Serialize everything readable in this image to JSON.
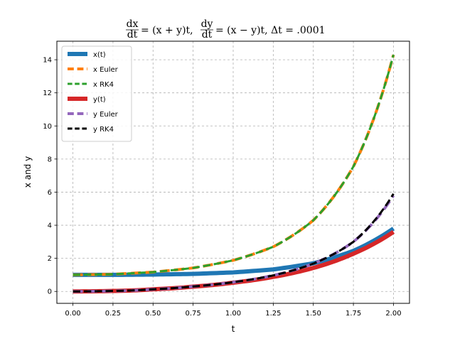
{
  "chart_data": {
    "type": "line",
    "title": "dx/dt = (x+y)t, dy/dt = (x−y)t, Δt = .0001",
    "title_parts": {
      "dx_num": "dx",
      "dx_den": "dt",
      "eq1": "= (x + y)t,",
      "dy_num": "dy",
      "dy_den": "dt",
      "eq2": "= (x − y)t, Δt = .0001"
    },
    "xlabel": "t",
    "ylabel": "x and y",
    "xlim": [
      -0.1,
      2.1
    ],
    "ylim": [
      -0.72,
      15.12
    ],
    "xticks": [
      0.0,
      0.25,
      0.5,
      0.75,
      1.0,
      1.25,
      1.5,
      1.75,
      2.0
    ],
    "xtick_labels": [
      "0.00",
      "0.25",
      "0.50",
      "0.75",
      "1.00",
      "1.25",
      "1.50",
      "1.75",
      "2.00"
    ],
    "yticks": [
      0,
      2,
      4,
      6,
      8,
      10,
      12,
      14
    ],
    "ytick_labels": [
      "0",
      "2",
      "4",
      "6",
      "8",
      "10",
      "12",
      "14"
    ],
    "grid": true,
    "legend_position": "top-left",
    "x": [
      0.0,
      0.25,
      0.5,
      0.75,
      1.0,
      1.25,
      1.5,
      1.75,
      2.0
    ],
    "series": [
      {
        "name": "x(t)",
        "color": "#1f77b4",
        "style": "solid",
        "width": 6,
        "values": [
          1.0,
          1.0,
          1.02,
          1.06,
          1.15,
          1.33,
          1.7,
          2.45,
          3.8
        ]
      },
      {
        "name": "x Euler",
        "color": "#ff7f0e",
        "style": "dashed",
        "width": 4,
        "values": [
          1.0,
          1.04,
          1.17,
          1.42,
          1.88,
          2.7,
          4.3,
          7.55,
          14.3
        ]
      },
      {
        "name": "x RK4",
        "color": "#2ca02c",
        "style": "dashed",
        "width": 3,
        "values": [
          1.0,
          1.04,
          1.17,
          1.42,
          1.88,
          2.7,
          4.3,
          7.55,
          14.3
        ]
      },
      {
        "name": "y(t)",
        "color": "#d62728",
        "style": "solid",
        "width": 6,
        "values": [
          0.0,
          0.03,
          0.13,
          0.29,
          0.53,
          0.88,
          1.42,
          2.28,
          3.6
        ]
      },
      {
        "name": "y Euler",
        "color": "#9467bd",
        "style": "dashed",
        "width": 4,
        "values": [
          0.0,
          0.03,
          0.13,
          0.3,
          0.56,
          0.97,
          1.68,
          3.0,
          5.8
        ]
      },
      {
        "name": "y RK4",
        "color": "#000000",
        "style": "dashed",
        "width": 3,
        "values": [
          0.0,
          0.03,
          0.13,
          0.3,
          0.56,
          0.97,
          1.68,
          3.0,
          5.9
        ]
      }
    ]
  }
}
